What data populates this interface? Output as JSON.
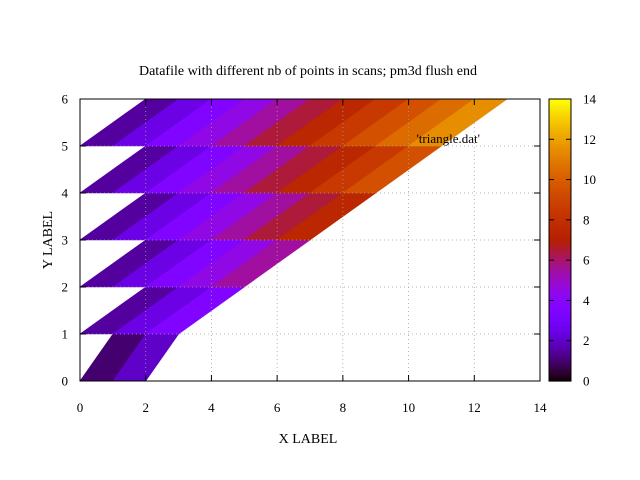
{
  "chart_data": {
    "type": "heatmap",
    "title": "Datafile with different nb of points in scans; pm3d flush end",
    "xlabel": "X LABEL",
    "ylabel": "Y LABEL",
    "xlim": [
      0,
      14
    ],
    "ylim": [
      0,
      6
    ],
    "xticks": [
      "0",
      "2",
      "4",
      "6",
      "8",
      "10",
      "12",
      "14"
    ],
    "yticks": [
      "0",
      "1",
      "2",
      "3",
      "4",
      "5",
      "6"
    ],
    "grid": true,
    "legend": {
      "label": "'triangle.dat'",
      "placement": "top-right"
    },
    "colorbar": {
      "range": [
        0,
        14
      ],
      "ticks": [
        "0",
        "2",
        "4",
        "6",
        "8",
        "10",
        "12",
        "14"
      ],
      "palette": "gnuplot (black-purple-red-orange-yellow)"
    },
    "scans": [
      {
        "y": 0,
        "x": [
          0,
          1,
          2
        ]
      },
      {
        "y": 1,
        "x": [
          0,
          1,
          2,
          3
        ]
      },
      {
        "y": 2,
        "x": [
          0,
          1,
          2,
          3,
          4,
          5
        ]
      },
      {
        "y": 3,
        "x": [
          0,
          1,
          2,
          3,
          4,
          5,
          6,
          7
        ]
      },
      {
        "y": 4,
        "x": [
          0,
          1,
          2,
          3,
          4,
          5,
          6,
          7,
          8,
          9
        ]
      },
      {
        "y": 5,
        "x": [
          0,
          1,
          2,
          3,
          4,
          5,
          6,
          7,
          8,
          9,
          10,
          11
        ]
      },
      {
        "y": 6,
        "x": [
          2,
          3,
          4,
          5,
          6,
          7,
          8,
          9,
          10,
          11,
          12,
          13
        ]
      }
    ],
    "z_rule": "z = x"
  }
}
